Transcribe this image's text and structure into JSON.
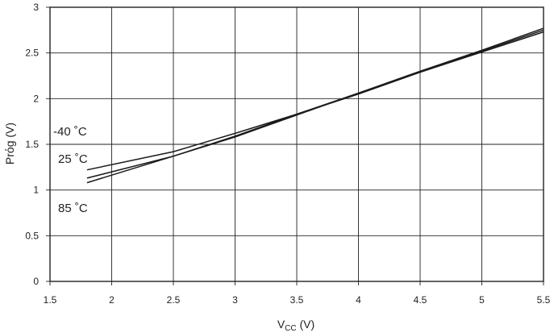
{
  "chart_data": {
    "type": "line",
    "title": "",
    "xlabel": "V",
    "xlabel_sub": "CC",
    "xlabel_unit": " (V)",
    "ylabel": "Prόg (V)",
    "xlim": [
      1.5,
      5.5
    ],
    "ylim": [
      0,
      3
    ],
    "xticks": [
      "1.5",
      "2",
      "2.5",
      "3",
      "3.5",
      "4",
      "4.5",
      "5",
      "5.5"
    ],
    "yticks": [
      "0",
      "0.5",
      "1",
      "1.5",
      "2",
      "2.5",
      "3"
    ],
    "grid": true,
    "series": [
      {
        "name": "-40 °C",
        "x": [
          1.8,
          2.5,
          3.0,
          3.5,
          4.0,
          4.5,
          5.0,
          5.5
        ],
        "y": [
          1.22,
          1.42,
          1.62,
          1.83,
          2.05,
          2.29,
          2.51,
          2.73
        ]
      },
      {
        "name": "25 °C",
        "x": [
          1.8,
          2.5,
          3.0,
          3.5,
          4.0,
          4.5,
          5.0,
          5.5
        ],
        "y": [
          1.13,
          1.37,
          1.59,
          1.83,
          2.06,
          2.29,
          2.52,
          2.75
        ]
      },
      {
        "name": "85 °C",
        "x": [
          1.8,
          2.5,
          3.0,
          3.5,
          4.0,
          4.5,
          5.0,
          5.5
        ],
        "y": [
          1.08,
          1.37,
          1.58,
          1.82,
          2.06,
          2.3,
          2.53,
          2.77
        ]
      }
    ],
    "annotations": [
      "-40 ˚C",
      "25 ˚C",
      "85 ˚C"
    ]
  }
}
